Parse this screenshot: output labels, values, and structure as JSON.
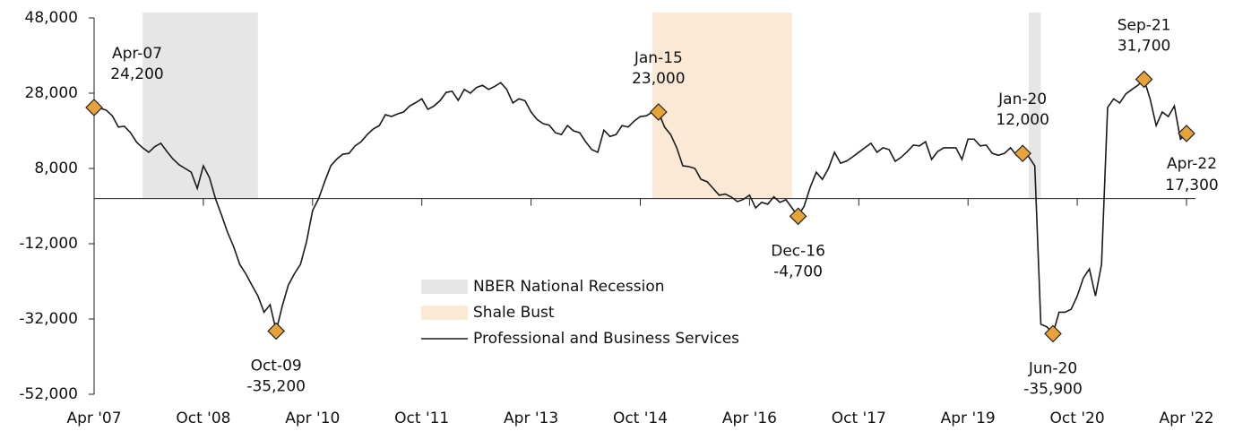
{
  "chart_data": {
    "type": "line",
    "categories": [
      "Apr '07",
      null,
      null,
      null,
      null,
      null,
      null,
      null,
      null,
      null,
      null,
      null,
      null,
      null,
      null,
      null,
      null,
      null,
      "Oct '08",
      null,
      null,
      null,
      null,
      null,
      null,
      null,
      null,
      null,
      null,
      null,
      null,
      null,
      null,
      null,
      null,
      null,
      "Apr '10",
      null,
      null,
      null,
      null,
      null,
      null,
      null,
      null,
      null,
      null,
      null,
      null,
      null,
      null,
      null,
      null,
      null,
      "Oct '11",
      null,
      null,
      null,
      null,
      null,
      null,
      null,
      null,
      null,
      null,
      null,
      null,
      null,
      null,
      null,
      null,
      null,
      "Apr '13",
      null,
      null,
      null,
      null,
      null,
      null,
      null,
      null,
      null,
      null,
      null,
      null,
      null,
      null,
      null,
      null,
      null,
      "Oct '14",
      null,
      null,
      null,
      null,
      null,
      null,
      null,
      null,
      null,
      null,
      null,
      null,
      null,
      null,
      null,
      null,
      null,
      "Apr '16",
      null,
      null,
      null,
      null,
      null,
      null,
      null,
      null,
      null,
      null,
      null,
      null,
      null,
      null,
      null,
      null,
      null,
      "Oct '17",
      null,
      null,
      null,
      null,
      null,
      null,
      null,
      null,
      null,
      null,
      null,
      null,
      null,
      null,
      null,
      null,
      null,
      "Apr '19",
      null,
      null,
      null,
      null,
      null,
      null,
      null,
      null,
      null,
      null,
      null,
      null,
      null,
      null,
      null,
      null,
      null,
      "Oct '20",
      null,
      null,
      null,
      null,
      null,
      null,
      null,
      null,
      null,
      null,
      null,
      null,
      null,
      null,
      null,
      null,
      null,
      "Apr '22"
    ],
    "series": [
      {
        "name": "Professional and Business Services",
        "color": "#1a1a1a",
        "values": [
          24200,
          24000,
          23500,
          22000,
          19000,
          19200,
          17500,
          15000,
          13500,
          12300,
          13800,
          14700,
          12500,
          10500,
          9000,
          8000,
          7000,
          2700,
          8700,
          5600,
          0,
          -4400,
          -9000,
          -12800,
          -17500,
          -20000,
          -23000,
          -25900,
          -30200,
          -28200,
          -35200,
          -28600,
          -23000,
          -20000,
          -17500,
          -11500,
          -3200,
          0,
          4500,
          8700,
          10500,
          11800,
          12000,
          14000,
          15100,
          17000,
          18500,
          19400,
          22300,
          21800,
          22500,
          23000,
          24600,
          25500,
          26500,
          23700,
          24600,
          26000,
          28200,
          28500,
          26100,
          29000,
          28000,
          29500,
          30100,
          29000,
          29800,
          30800,
          29000,
          25400,
          26500,
          26000,
          23000,
          21000,
          19900,
          19500,
          17500,
          17000,
          19400,
          18000,
          17500,
          15100,
          13000,
          12300,
          18200,
          16500,
          17000,
          19400,
          19000,
          20600,
          21800,
          22000,
          23000,
          23000,
          19000,
          17000,
          13500,
          8700,
          8500,
          8000,
          5100,
          4500,
          2700,
          900,
          1200,
          400,
          -800,
          -200,
          900,
          -2500,
          -1000,
          -1500,
          500,
          -1000,
          -300,
          -2500,
          -4700,
          -2000,
          3000,
          7000,
          5100,
          8000,
          12300,
          9400,
          10000,
          11100,
          12300,
          13500,
          14700,
          12300,
          13500,
          13000,
          9900,
          11000,
          12500,
          14200,
          14000,
          15100,
          10400,
          12500,
          13500,
          13500,
          13500,
          10400,
          15800,
          15800,
          14000,
          14200,
          12000,
          11500,
          12000,
          13500,
          11500,
          12000,
          11100,
          8700,
          -33400,
          -34100,
          -35900,
          -30200,
          -30200,
          -29400,
          -25900,
          -21100,
          -18700,
          -25900,
          -17500,
          24200,
          26500,
          25400,
          27800,
          29000,
          30100,
          31700,
          26500,
          19400,
          23000,
          21800,
          24600,
          15800,
          17300
        ]
      }
    ],
    "shaded": [
      {
        "name": "NBER National Recession",
        "color": "#e6e6e6",
        "ranges": [
          [
            8,
            27
          ],
          [
            154,
            156
          ]
        ]
      },
      {
        "name": "Shale Bust",
        "color": "#fbe9d6",
        "ranges": [
          [
            92,
            115
          ]
        ]
      }
    ],
    "annotations": [
      {
        "index": 0,
        "date": "Apr-07",
        "value": 24200,
        "label": "24,200"
      },
      {
        "index": 30,
        "date": "Oct-09",
        "value": -35200,
        "label": "-35,200"
      },
      {
        "index": 93,
        "date": "Jan-15",
        "value": 23000,
        "label": "23,000"
      },
      {
        "index": 116,
        "date": "Dec-16",
        "value": -4700,
        "label": "-4,700"
      },
      {
        "index": 153,
        "date": "Jan-20",
        "value": 12000,
        "label": "12,000"
      },
      {
        "index": 158,
        "date": "Jun-20",
        "value": -35900,
        "label": "-35,900"
      },
      {
        "index": 173,
        "date": "Sep-21",
        "value": 31700,
        "label": "31,700"
      },
      {
        "index": 180,
        "date": "Apr-22",
        "value": 17300,
        "label": "17,300"
      }
    ],
    "marker_color": "#e8a23a",
    "ylim": [
      -52000,
      48000
    ],
    "yticks": [
      {
        "value": 48000,
        "label": "48,000"
      },
      {
        "value": 28000,
        "label": "28,000"
      },
      {
        "value": 8000,
        "label": "8,000"
      },
      {
        "value": -12000,
        "label": "-12,000"
      },
      {
        "value": -32000,
        "label": "-32,000"
      },
      {
        "value": -52000,
        "label": "-52,000"
      }
    ]
  }
}
